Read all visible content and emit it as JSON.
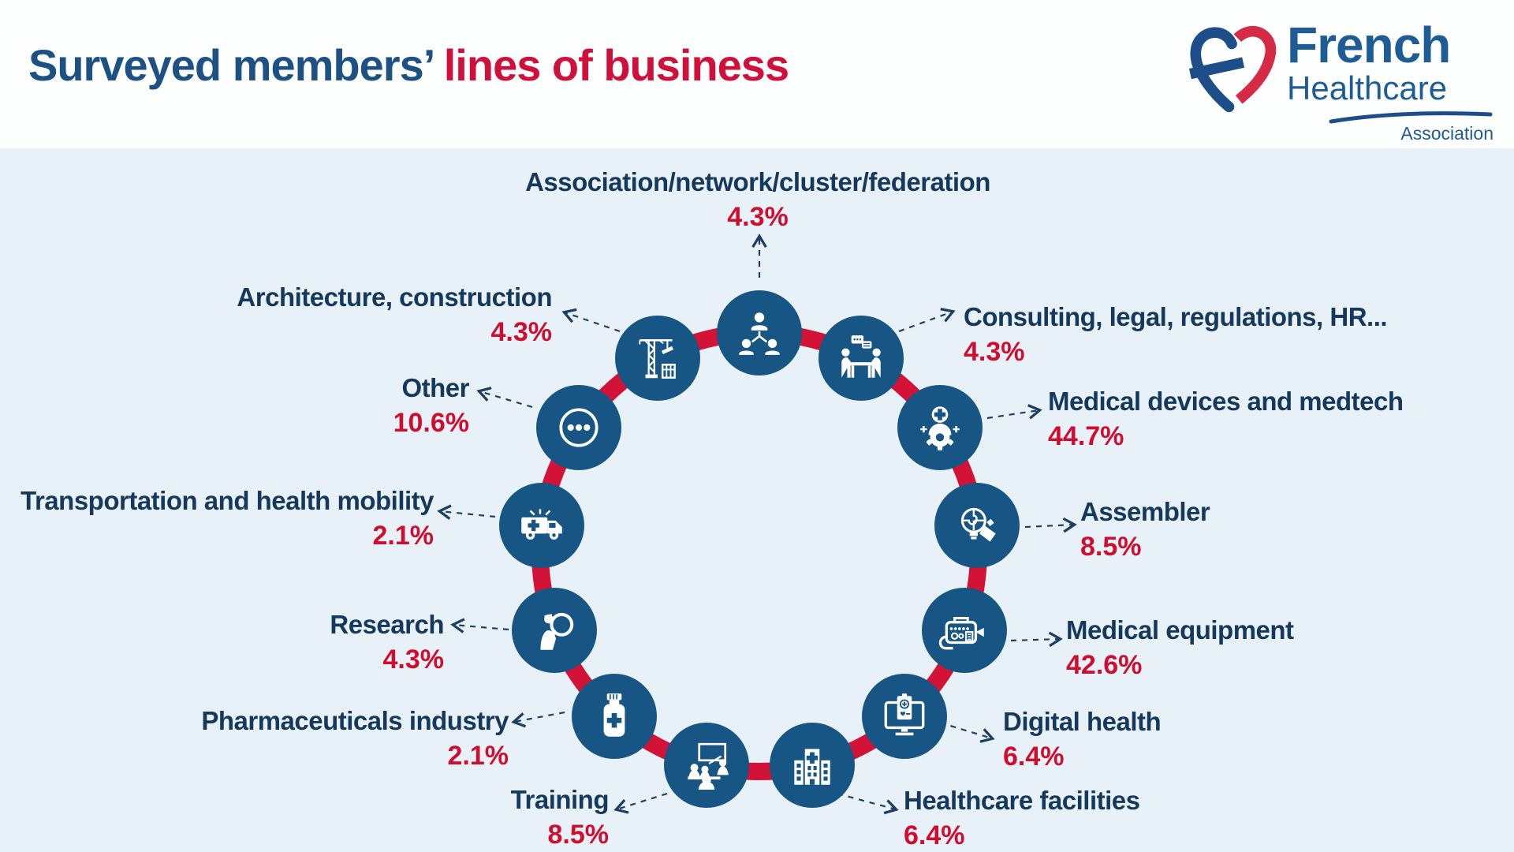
{
  "header": {
    "title_primary": "Surveyed members’ ",
    "title_accent": "lines of business"
  },
  "logo": {
    "brand_top": "French",
    "brand_bottom": "Healthcare",
    "tagline": "Association"
  },
  "colors": {
    "bg": "#e9f1f8",
    "header_bg": "#fdfefe",
    "navy_title": "#1d5184",
    "navy_text": "#14395c",
    "accent_red": "#d0103a",
    "pct_red": "#cf0d2e",
    "ring_red": "#d21237",
    "circle_blue": "#175584",
    "arrow_navy": "#1d3f63",
    "logo_blue": "#1e5c95",
    "logo_red": "#d62b47",
    "icon_white": "#ffffff"
  },
  "chart_data": {
    "type": "pie",
    "title": "Surveyed members' lines of business",
    "unit": "%",
    "layout": "circular icon ring with 13 categories, labels around the ring, dashed leader arrows; multi-select survey so values sum to more than 100%",
    "legend_position": "around-ring",
    "categories": [
      "Association/network/cluster/federation",
      "Consulting, legal, regulations, HR...",
      "Medical devices and medtech",
      "Assembler",
      "Medical equipment",
      "Digital health",
      "Healthcare facilities",
      "Training",
      "Pharmaceuticals industry",
      "Research",
      "Transportation and health mobility",
      "Other",
      "Architecture, construction"
    ],
    "values": [
      4.3,
      4.3,
      44.7,
      8.5,
      42.6,
      6.4,
      6.4,
      8.5,
      2.1,
      4.3,
      2.1,
      10.6,
      4.3
    ],
    "value_labels": [
      "4.3%",
      "4.3%",
      "44.7%",
      "8.5%",
      "42.6%",
      "6.4%",
      "6.4%",
      "8.5%",
      "2.1%",
      "4.3%",
      "2.1%",
      "10.6%",
      "4.3%"
    ],
    "icons": [
      "org-chart",
      "consulting-table",
      "medtech-gear",
      "assembler-bulb",
      "medical-equipment",
      "digital-health",
      "hospital-building",
      "training-classroom",
      "pill-bottle",
      "research-magnifier",
      "ambulance",
      "ellipsis",
      "construction-crane"
    ]
  }
}
